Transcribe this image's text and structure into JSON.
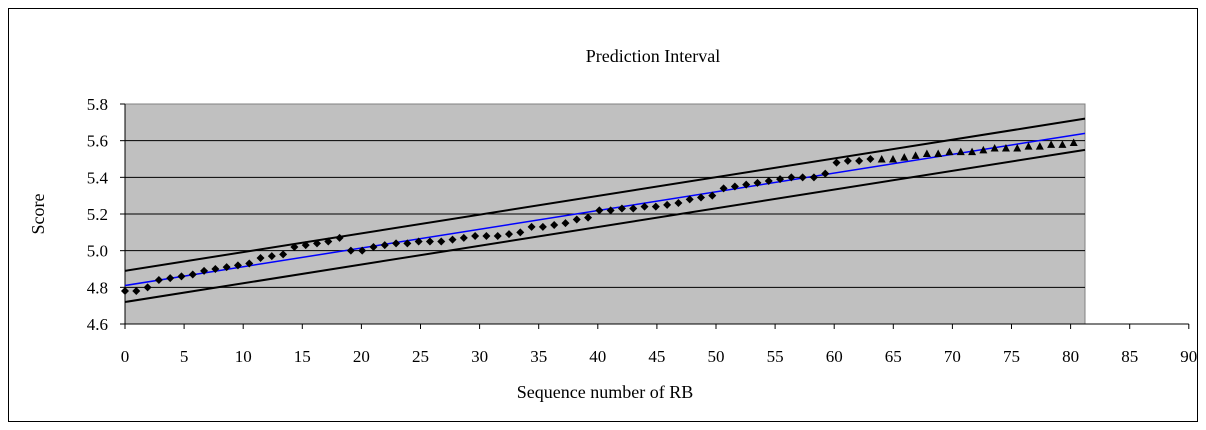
{
  "chart_data": {
    "type": "scatter",
    "title": "Prediction Interval",
    "xlabel": "Sequence number of RB",
    "ylabel": "Score",
    "xlim": [
      0,
      90
    ],
    "ylim": [
      4.6,
      5.8
    ],
    "xticks": [
      "0",
      "5",
      "10",
      "15",
      "20",
      "25",
      "30",
      "35",
      "40",
      "45",
      "50",
      "55",
      "60",
      "65",
      "70",
      "75",
      "80",
      "85",
      "90"
    ],
    "yticks": [
      "4.6",
      "4.8",
      "5.0",
      "5.2",
      "5.4",
      "5.6",
      "5.8"
    ],
    "grid": "horizontal",
    "legend": "none",
    "colors": {
      "plot_bg": "#c0c0c0",
      "fit_line": "#0000ff",
      "interval_lines": "#000000",
      "markers": "#000000"
    },
    "series": [
      {
        "marker": "diamond",
        "x": [
          0,
          1,
          2,
          3,
          4,
          5,
          6,
          7,
          8,
          9,
          10,
          11,
          12,
          13,
          14,
          15,
          16,
          17,
          18,
          19,
          20,
          21,
          22,
          23,
          24,
          25,
          26,
          27,
          28,
          29,
          30,
          31,
          32,
          33,
          34,
          35,
          36,
          37,
          38,
          39,
          40,
          41,
          42,
          43,
          44,
          45,
          46,
          47,
          48,
          49,
          50,
          51,
          52,
          53,
          54,
          55,
          56,
          57,
          58,
          59,
          60,
          61,
          62,
          63,
          64,
          65,
          66
        ],
        "y": [
          4.78,
          4.78,
          4.8,
          4.84,
          4.85,
          4.86,
          4.87,
          4.89,
          4.9,
          4.91,
          4.92,
          4.93,
          4.96,
          4.97,
          4.98,
          5.02,
          5.03,
          5.04,
          5.05,
          5.07,
          5.0,
          5.0,
          5.02,
          5.03,
          5.04,
          5.04,
          5.05,
          5.05,
          5.05,
          5.06,
          5.07,
          5.08,
          5.08,
          5.08,
          5.09,
          5.1,
          5.13,
          5.13,
          5.14,
          5.15,
          5.17,
          5.18,
          5.22,
          5.22,
          5.23,
          5.23,
          5.24,
          5.24,
          5.25,
          5.26,
          5.28,
          5.29,
          5.3,
          5.34,
          5.35,
          5.36,
          5.37,
          5.38,
          5.39,
          5.4,
          5.4,
          5.4,
          5.42,
          5.48,
          5.49,
          5.49,
          5.5
        ]
      },
      {
        "marker": "triangle",
        "x": [
          67,
          68,
          69,
          70,
          71,
          72,
          73,
          74,
          75,
          76,
          77,
          78,
          79,
          80,
          81,
          82,
          83,
          84
        ],
        "y": [
          5.5,
          5.5,
          5.51,
          5.52,
          5.53,
          5.53,
          5.54,
          5.54,
          5.54,
          5.55,
          5.56,
          5.56,
          5.56,
          5.57,
          5.57,
          5.58,
          5.58,
          5.59
        ]
      }
    ],
    "fit_line": {
      "x": [
        0,
        85
      ],
      "y": [
        4.81,
        5.64
      ]
    },
    "upper_bound": {
      "x": [
        0,
        85
      ],
      "y": [
        4.89,
        5.72
      ]
    },
    "lower_bound": {
      "x": [
        0,
        85
      ],
      "y": [
        4.72,
        5.55
      ]
    }
  }
}
